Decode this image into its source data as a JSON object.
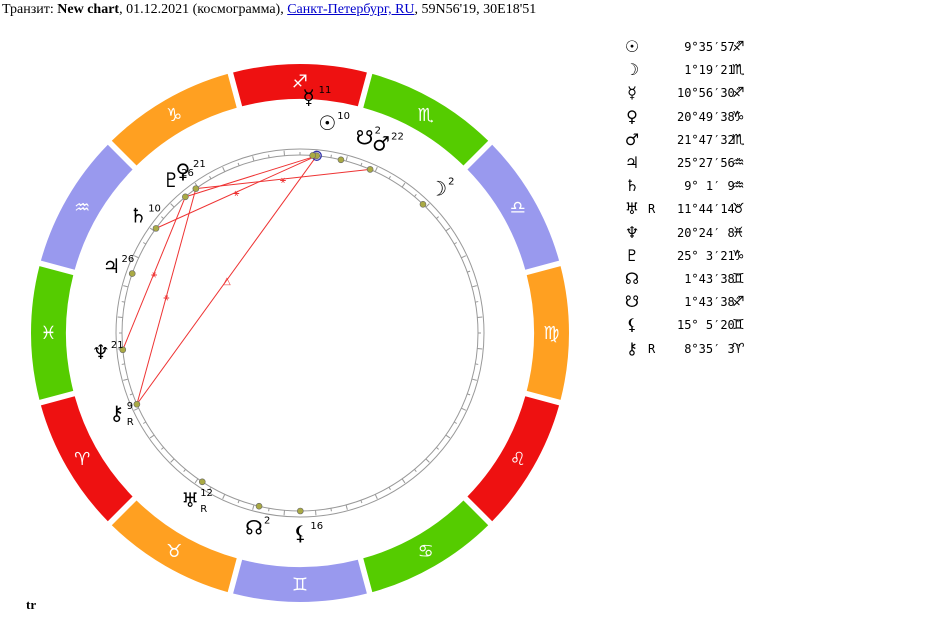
{
  "header": {
    "prefix": "Транзит: ",
    "chart_name": "New chart",
    "date_info": ", 01.12.2021 (космограмма), ",
    "location_link": "Санкт-Петербург, RU",
    "coords": ", 59N56'19, 30E18'51"
  },
  "footer": {
    "label": "tr"
  },
  "colors": {
    "fire": "#ee1111",
    "earth": "#ffa021",
    "air": "#9999ee",
    "water": "#55cc00",
    "aspect_line": "#ee3333",
    "planet_dot": "#aaaa44"
  },
  "signs": [
    {
      "key": "aries",
      "glyph": "♈",
      "element": "fire"
    },
    {
      "key": "taurus",
      "glyph": "♉",
      "element": "earth"
    },
    {
      "key": "gemini",
      "glyph": "♊",
      "element": "air"
    },
    {
      "key": "cancer",
      "glyph": "♋",
      "element": "water"
    },
    {
      "key": "leo",
      "glyph": "♌",
      "element": "fire"
    },
    {
      "key": "virgo",
      "glyph": "♍",
      "element": "earth"
    },
    {
      "key": "libra",
      "glyph": "♎",
      "element": "air"
    },
    {
      "key": "scorpio",
      "glyph": "♏",
      "element": "water"
    },
    {
      "key": "sagittarius",
      "glyph": "♐",
      "element": "fire"
    },
    {
      "key": "capricorn",
      "glyph": "♑",
      "element": "earth"
    },
    {
      "key": "aquarius",
      "glyph": "♒",
      "element": "air"
    },
    {
      "key": "pisces",
      "glyph": "♓",
      "element": "water"
    }
  ],
  "planets": [
    {
      "key": "sun",
      "glyph": "☉",
      "retro": "",
      "position": "9°35′57″",
      "sign_glyph": "♐",
      "lon": 249.6,
      "wheel_degree": "10",
      "wheel_retro": ""
    },
    {
      "key": "moon",
      "glyph": "☽",
      "retro": "",
      "position": "1°19′21″",
      "sign_glyph": "♏",
      "lon": 211.3,
      "wheel_degree": "2",
      "wheel_retro": ""
    },
    {
      "key": "mercury",
      "glyph": "☿",
      "retro": "",
      "position": "10°56′30″",
      "sign_glyph": "♐",
      "lon": 250.9,
      "wheel_degree": "11",
      "wheel_retro": ""
    },
    {
      "key": "venus",
      "glyph": "♀",
      "retro": "",
      "position": "20°49′38″",
      "sign_glyph": "♑",
      "lon": 290.8,
      "wheel_degree": "21",
      "wheel_retro": ""
    },
    {
      "key": "mars",
      "glyph": "♂",
      "retro": "",
      "position": "21°47′32″",
      "sign_glyph": "♏",
      "lon": 231.8,
      "wheel_degree": "22",
      "wheel_retro": ""
    },
    {
      "key": "jupiter",
      "glyph": "♃",
      "retro": "",
      "position": "25°27′56″",
      "sign_glyph": "♒",
      "lon": 325.5,
      "wheel_degree": "26",
      "wheel_retro": ""
    },
    {
      "key": "saturn",
      "glyph": "♄",
      "retro": "",
      "position": "9° 1′ 9″",
      "sign_glyph": "♒",
      "lon": 309.0,
      "wheel_degree": "10",
      "wheel_retro": ""
    },
    {
      "key": "uranus",
      "glyph": "♅",
      "retro": "R",
      "position": "11°44′14″",
      "sign_glyph": "♉",
      "lon": 41.7,
      "wheel_degree": "12",
      "wheel_retro": "R"
    },
    {
      "key": "neptune",
      "glyph": "♆",
      "retro": "",
      "position": "20°24′ 8″",
      "sign_glyph": "♓",
      "lon": 350.4,
      "wheel_degree": "21",
      "wheel_retro": ""
    },
    {
      "key": "pluto",
      "glyph": "♇",
      "retro": "",
      "position": "25° 3′21″",
      "sign_glyph": "♑",
      "lon": 295.1,
      "wheel_degree": "26",
      "wheel_retro": ""
    },
    {
      "key": "north_node",
      "glyph": "☊",
      "retro": "",
      "position": "1°43′38″",
      "sign_glyph": "♊",
      "lon": 61.7,
      "wheel_degree": "2",
      "wheel_retro": ""
    },
    {
      "key": "south_node",
      "glyph": "☋",
      "retro": "",
      "position": "1°43′38″",
      "sign_glyph": "♐",
      "lon": 241.7,
      "wheel_degree": "2",
      "wheel_retro": ""
    },
    {
      "key": "lilith",
      "glyph": "⚸",
      "retro": "",
      "position": "15° 5′20″",
      "sign_glyph": "♊",
      "lon": 75.1,
      "wheel_degree": "16",
      "wheel_retro": ""
    },
    {
      "key": "chiron",
      "glyph": "⚷",
      "retro": "R",
      "position": "8°35′ 3″",
      "sign_glyph": "♈",
      "lon": 8.6,
      "wheel_degree": "9",
      "wheel_retro": "R"
    }
  ],
  "aspects": [
    {
      "from": "chiron",
      "to": "sun",
      "symbol": "△"
    },
    {
      "from": "chiron",
      "to": "venus",
      "symbol": "⚹"
    },
    {
      "from": "neptune",
      "to": "pluto",
      "symbol": "⚹"
    },
    {
      "from": "saturn",
      "to": "sun",
      "symbol": "⚹"
    },
    {
      "from": "venus",
      "to": "mars",
      "symbol": "⚹"
    },
    {
      "from": "pluto",
      "to": "sun",
      "symbol": ""
    }
  ]
}
